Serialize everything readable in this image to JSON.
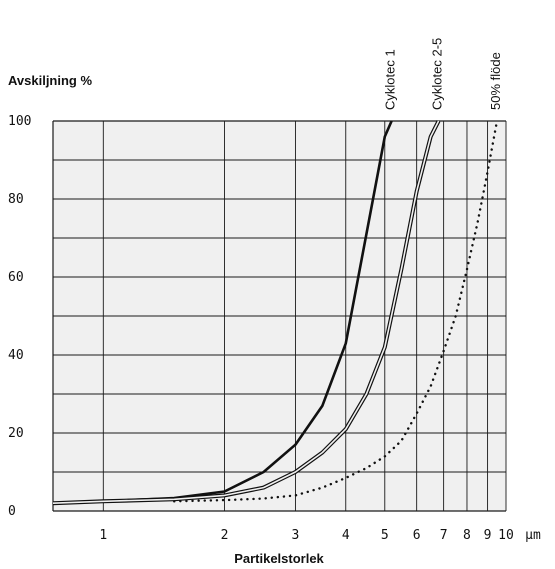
{
  "chart_data": {
    "type": "line",
    "xscale": "log",
    "ylabel": "Avskiljning %",
    "xlabel": "Partikelstorlek",
    "unit": "µm",
    "xlim": [
      0.75,
      10
    ],
    "ylim": [
      0,
      100
    ],
    "grid": true,
    "x_ticks": [
      1,
      2,
      3,
      4,
      5,
      6,
      7,
      8,
      9,
      10
    ],
    "x_tick_labels": [
      "1",
      "2",
      "3",
      "4",
      "5",
      "6",
      "7",
      "8",
      "9",
      "10"
    ],
    "y_ticks": [
      0,
      20,
      40,
      60,
      80,
      100
    ],
    "y_tick_labels": [
      "0",
      "20",
      "40",
      "60",
      "80",
      "100"
    ],
    "series": [
      {
        "name": "Cyklotec 1",
        "style": "solid-bold",
        "x": [
          0.75,
          1.0,
          1.5,
          2.0,
          2.5,
          3.0,
          3.5,
          4.0,
          4.5,
          5.0,
          5.2
        ],
        "y": [
          2,
          2.5,
          3.3,
          5,
          10,
          17,
          27,
          43,
          71,
          96,
          100
        ]
      },
      {
        "name": "Cyklotec 2-5",
        "style": "double",
        "x": [
          0.75,
          1.0,
          1.5,
          2.0,
          2.5,
          3.0,
          3.5,
          4.0,
          4.5,
          5.0,
          5.5,
          6.0,
          6.5,
          6.8
        ],
        "y": [
          2,
          2.5,
          3,
          4,
          6,
          10,
          15,
          21,
          30,
          42,
          62,
          82,
          96,
          100
        ]
      },
      {
        "name": "50% flöde",
        "style": "dotted",
        "x": [
          1.5,
          2.0,
          2.5,
          3.0,
          3.5,
          4.0,
          4.5,
          5.0,
          5.5,
          6.0,
          6.5,
          7.0,
          7.5,
          8.0,
          8.5,
          9.0,
          9.5
        ],
        "y": [
          2.5,
          2.8,
          3.2,
          4,
          6,
          8.5,
          11,
          14,
          18,
          25,
          32,
          41,
          50,
          62,
          74,
          87,
          100
        ]
      }
    ]
  }
}
